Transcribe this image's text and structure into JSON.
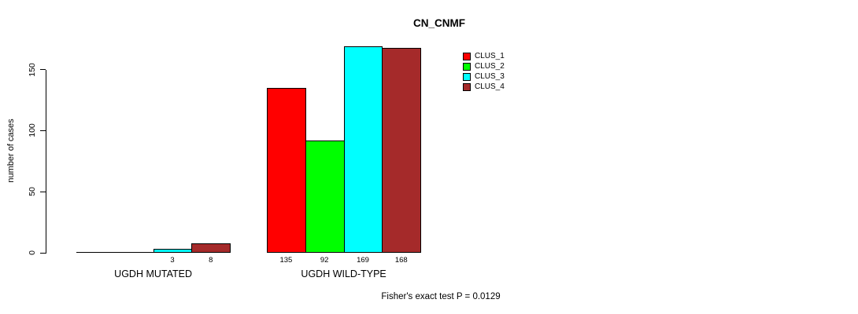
{
  "title": "CN_CNMF",
  "ylabel": "number of cases",
  "footer": "Fisher's exact test P = 0.0129",
  "chart_data": {
    "type": "bar",
    "grouped": true,
    "title": "CN_CNMF",
    "xlabel": "",
    "ylabel": "number of cases",
    "categories": [
      "UGDH MUTATED",
      "UGDH WILD-TYPE"
    ],
    "series": [
      {
        "name": "CLUS_1",
        "color": "#FF0000",
        "values": [
          0,
          135
        ]
      },
      {
        "name": "CLUS_2",
        "color": "#00FF00",
        "values": [
          0,
          92
        ]
      },
      {
        "name": "CLUS_3",
        "color": "#00FFFF",
        "values": [
          3,
          169
        ]
      },
      {
        "name": "CLUS_4",
        "color": "#A52A2A",
        "values": [
          8,
          168
        ]
      }
    ],
    "bar_value_labels": [
      [
        "",
        "",
        "3",
        "8"
      ],
      [
        "135",
        "92",
        "169",
        "168"
      ]
    ],
    "yticks": [
      0,
      50,
      100,
      150
    ],
    "ylim": [
      0,
      172
    ],
    "grid": false,
    "legend_position": "top-right",
    "legend_entries": [
      "CLUS_1",
      "CLUS_2",
      "CLUS_3",
      "CLUS_4"
    ],
    "annotation": "Fisher's exact test P = 0.0129",
    "bar_border_color": "#000000",
    "background_color": "#FFFFFF"
  }
}
